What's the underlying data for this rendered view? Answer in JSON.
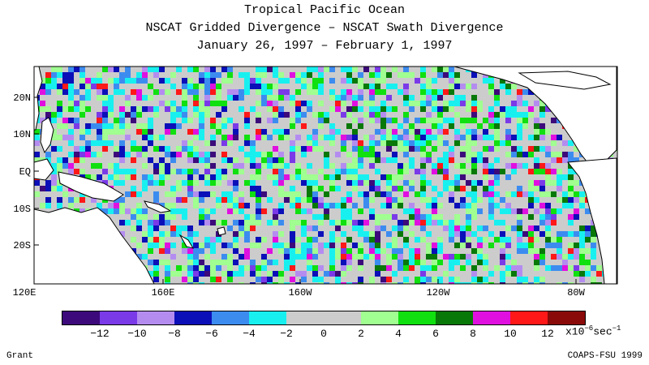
{
  "title": {
    "line1": "Tropical Pacific Ocean",
    "line2": "NSCAT Gridded Divergence – NSCAT Swath Divergence",
    "line3": "January 26, 1997 – February 1, 1997"
  },
  "map": {
    "lat_labels": [
      "20N",
      "10N",
      "EQ",
      "10S",
      "20S"
    ],
    "lon_labels": [
      "120E",
      "160E",
      "160W",
      "120W",
      "80W"
    ]
  },
  "colorbar": {
    "colors": [
      "#3c0a7a",
      "#7a3ae8",
      "#b48cf0",
      "#0b0fb8",
      "#3c8cf0",
      "#18f0f0",
      "#cccccc",
      "#cccccc",
      "#a0ff90",
      "#10e010",
      "#087808",
      "#e010e0",
      "#ff1818",
      "#8a0a0a"
    ],
    "labels": [
      "−12",
      "−10",
      "−8",
      "−6",
      "−4",
      "−2",
      "0",
      "2",
      "4",
      "6",
      "8",
      "10",
      "12"
    ],
    "unit_base": "x10",
    "unit_exp": "−6",
    "unit_tail": "sec",
    "unit_tail_exp": "−1"
  },
  "footer": {
    "left": "Grant",
    "right": "COAPS-FSU 1999"
  }
}
